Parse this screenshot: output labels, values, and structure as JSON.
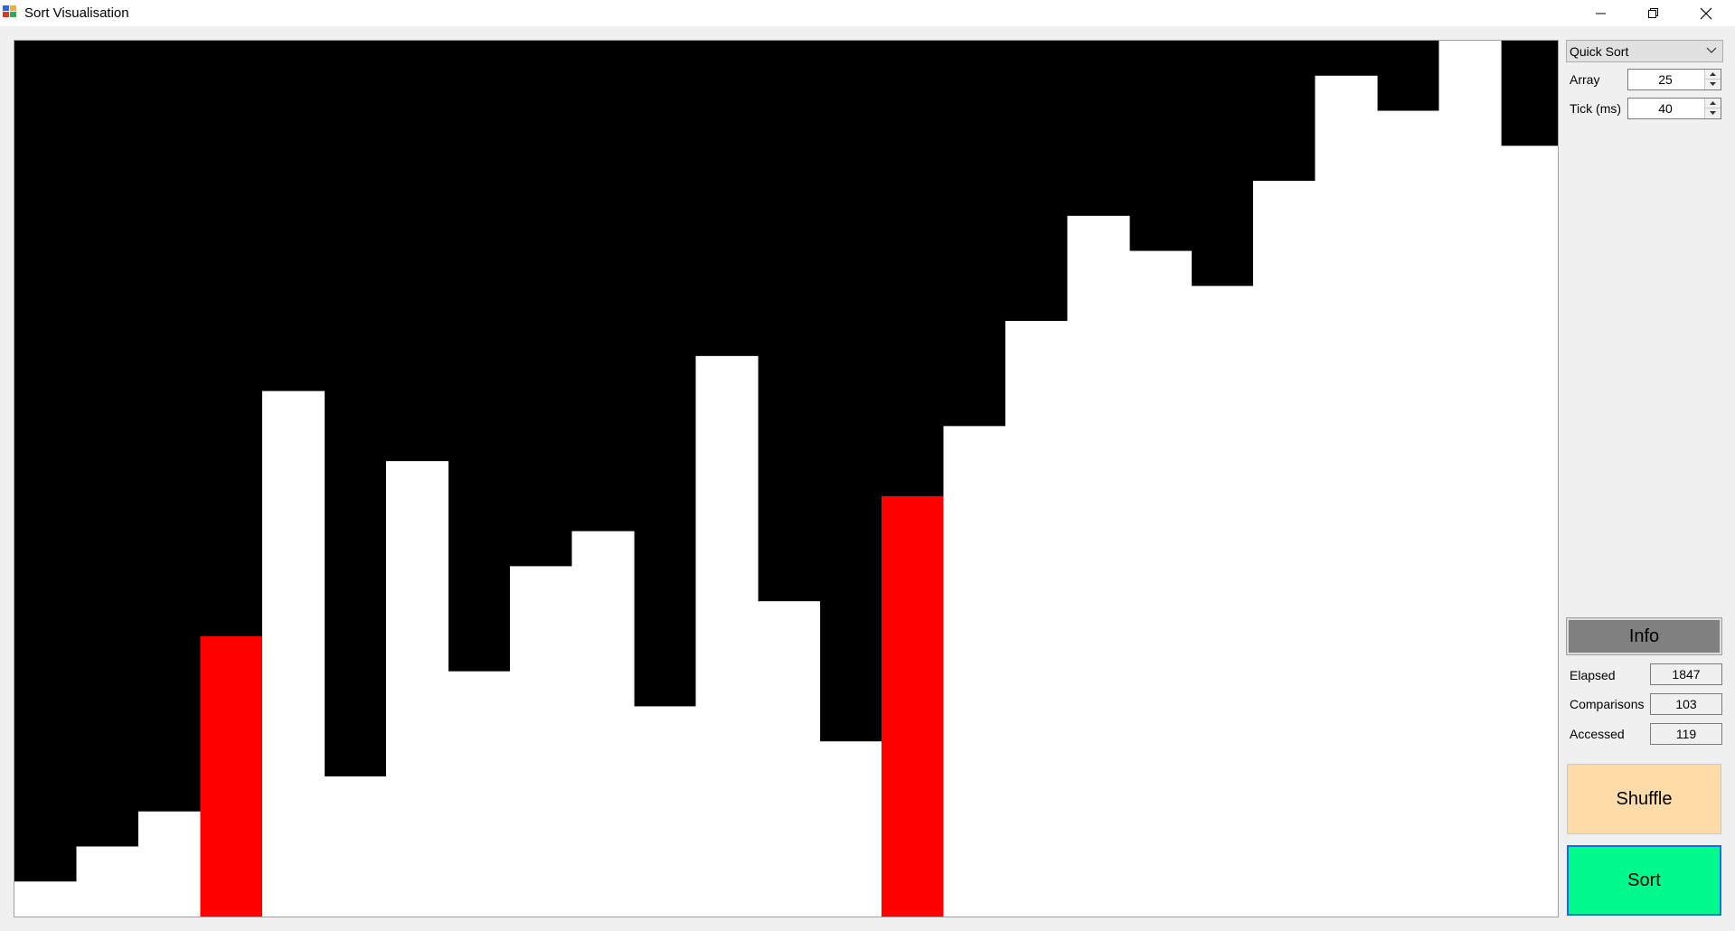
{
  "window": {
    "title": "Sort Visualisation",
    "icons": {
      "app": "app-icon",
      "minimize": "minimize-icon",
      "restore": "restore-icon",
      "close": "close-icon"
    }
  },
  "controls": {
    "algorithm": {
      "selected": "Quick Sort"
    },
    "array": {
      "label": "Array",
      "value": "25"
    },
    "tick": {
      "label": "Tick (ms)",
      "value": "40"
    }
  },
  "info": {
    "header": "Info",
    "stats": [
      {
        "label": "Elapsed",
        "value": "1847"
      },
      {
        "label": "Comparisons",
        "value": "103"
      },
      {
        "label": "Accessed",
        "value": "119"
      }
    ]
  },
  "buttons": {
    "shuffle": "Shuffle",
    "sort": "Sort"
  },
  "colors": {
    "bar": "#ffffff",
    "highlight": "#ff0000",
    "background": "#000000",
    "shuffle": "#ffdcaa",
    "sort": "#00fa8c",
    "info_header": "#808080"
  },
  "chart_data": {
    "type": "bar",
    "values": [
      1,
      2,
      3,
      8,
      15,
      4,
      13,
      7,
      10,
      11,
      6,
      16,
      9,
      5,
      12,
      14,
      17,
      20,
      19,
      18,
      21,
      24,
      23,
      25,
      22
    ],
    "highlighted_indices": [
      3,
      14
    ],
    "ylim": [
      0,
      25
    ]
  }
}
